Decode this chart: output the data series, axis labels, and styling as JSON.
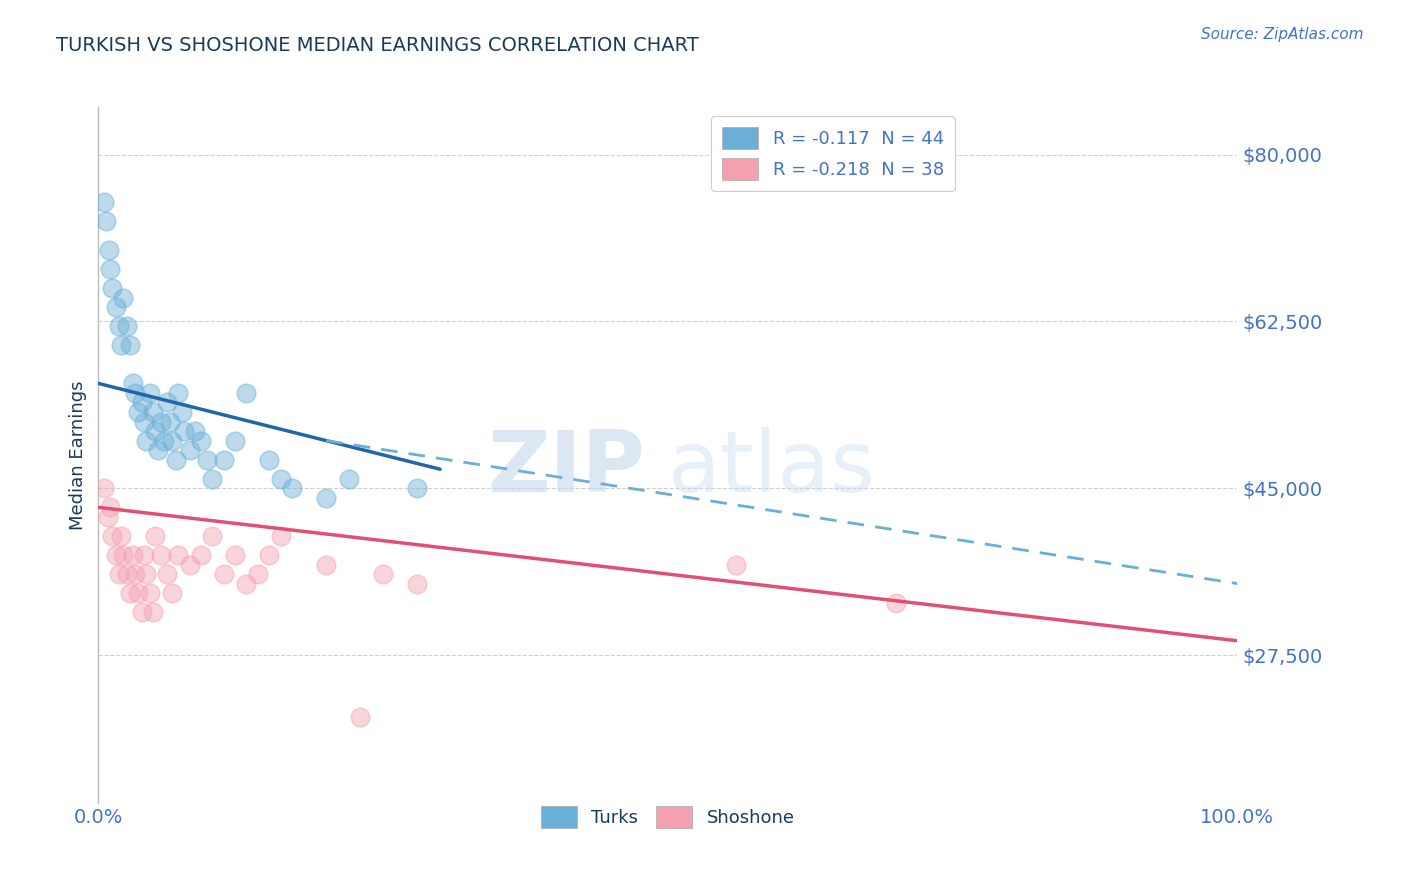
{
  "title": "TURKISH VS SHOSHONE MEDIAN EARNINGS CORRELATION CHART",
  "source_text": "Source: ZipAtlas.com",
  "xlabel": "",
  "ylabel": "Median Earnings",
  "xlim": [
    0.0,
    1.0
  ],
  "ylim": [
    12000,
    85000
  ],
  "yticks": [
    27500,
    45000,
    62500,
    80000
  ],
  "ytick_labels": [
    "$27,500",
    "$45,000",
    "$62,500",
    "$80,000"
  ],
  "xticks": [
    0.0,
    1.0
  ],
  "xtick_labels": [
    "0.0%",
    "100.0%"
  ],
  "legend_r1": "R = -0.117  N = 44",
  "legend_r2": "R = -0.218  N = 38",
  "legend_label1": "Turks",
  "legend_label2": "Shoshone",
  "blue_color": "#6baed6",
  "pink_color": "#f4a0b0",
  "trend_blue": "#2166ac",
  "trend_pink": "#e05070",
  "dashed_blue": "#6baed6",
  "watermark_zip": "ZIP",
  "watermark_atlas": "atlas",
  "background_color": "#ffffff",
  "title_color": "#1a3a5c",
  "axis_label_color": "#1a3a5c",
  "tick_label_color": "#4472c4",
  "grid_color": "#d0d0d0",
  "turks_x": [
    0.005,
    0.007,
    0.009,
    0.01,
    0.012,
    0.015,
    0.018,
    0.02,
    0.022,
    0.025,
    0.028,
    0.03,
    0.032,
    0.035,
    0.038,
    0.04,
    0.042,
    0.045,
    0.048,
    0.05,
    0.052,
    0.055,
    0.058,
    0.06,
    0.063,
    0.065,
    0.068,
    0.07,
    0.073,
    0.075,
    0.08,
    0.085,
    0.09,
    0.095,
    0.1,
    0.11,
    0.12,
    0.13,
    0.15,
    0.16,
    0.17,
    0.2,
    0.22,
    0.28
  ],
  "turks_y": [
    75000,
    73000,
    70000,
    68000,
    66000,
    64000,
    62000,
    60000,
    65000,
    62000,
    60000,
    56000,
    55000,
    53000,
    54000,
    52000,
    50000,
    55000,
    53000,
    51000,
    49000,
    52000,
    50000,
    54000,
    52000,
    50000,
    48000,
    55000,
    53000,
    51000,
    49000,
    51000,
    50000,
    48000,
    46000,
    48000,
    50000,
    55000,
    48000,
    46000,
    45000,
    44000,
    46000,
    45000
  ],
  "shoshone_x": [
    0.005,
    0.008,
    0.01,
    0.012,
    0.015,
    0.018,
    0.02,
    0.022,
    0.025,
    0.028,
    0.03,
    0.032,
    0.035,
    0.038,
    0.04,
    0.042,
    0.045,
    0.048,
    0.05,
    0.055,
    0.06,
    0.065,
    0.07,
    0.08,
    0.09,
    0.1,
    0.11,
    0.12,
    0.13,
    0.14,
    0.15,
    0.16,
    0.2,
    0.23,
    0.25,
    0.28,
    0.56,
    0.7
  ],
  "shoshone_y": [
    45000,
    42000,
    43000,
    40000,
    38000,
    36000,
    40000,
    38000,
    36000,
    34000,
    38000,
    36000,
    34000,
    32000,
    38000,
    36000,
    34000,
    32000,
    40000,
    38000,
    36000,
    34000,
    38000,
    37000,
    38000,
    40000,
    36000,
    38000,
    35000,
    36000,
    38000,
    40000,
    37000,
    21000,
    36000,
    35000,
    37000,
    33000
  ],
  "turks_trend_x0": 0.0,
  "turks_trend_x1": 0.3,
  "turks_trend_y0": 56000,
  "turks_trend_y1": 47000,
  "shoshone_trend_x0": 0.0,
  "shoshone_trend_x1": 1.0,
  "shoshone_trend_y0": 43000,
  "shoshone_trend_y1": 29000,
  "dashed_trend_x0": 0.2,
  "dashed_trend_x1": 1.0,
  "dashed_trend_y0": 50000,
  "dashed_trend_y1": 35000
}
